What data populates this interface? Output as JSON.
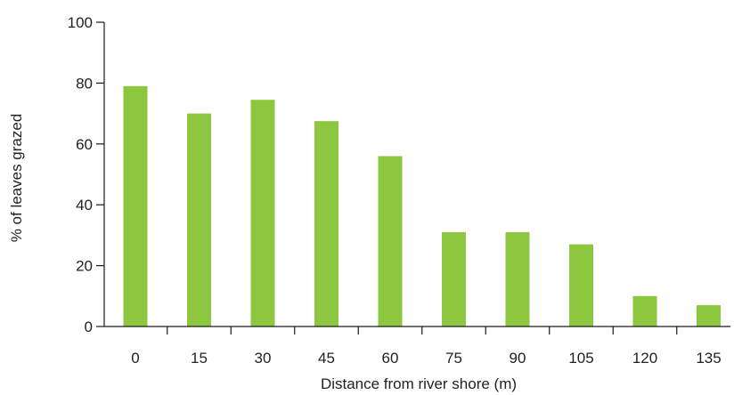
{
  "chart_data": {
    "type": "bar",
    "title": "",
    "xlabel": "Distance from river shore (m)",
    "ylabel": "% of leaves grazed",
    "categories": [
      "0",
      "15",
      "30",
      "45",
      "60",
      "75",
      "90",
      "105",
      "120",
      "135"
    ],
    "values": [
      79,
      70,
      74.5,
      67.5,
      56,
      31,
      31,
      27,
      10,
      7
    ],
    "ylim": [
      0,
      100
    ],
    "yticks": [
      "0",
      "20",
      "40",
      "60",
      "80",
      "100"
    ],
    "grid": false,
    "legend": "none",
    "bar_color": "#8dc63f"
  }
}
